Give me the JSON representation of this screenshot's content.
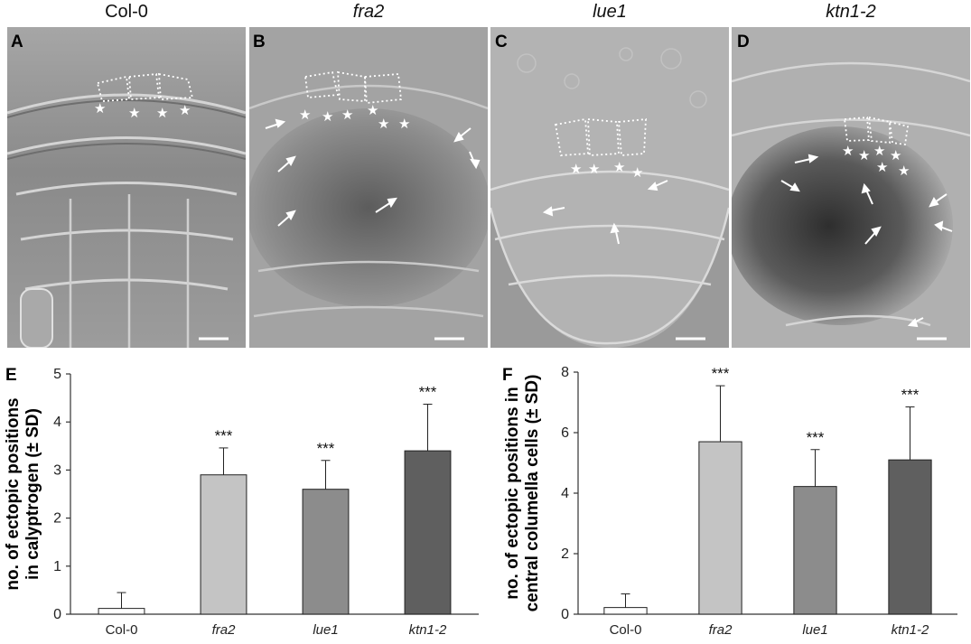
{
  "panels": {
    "titles": [
      "Col-0",
      "fra2",
      "lue1",
      "ktn1-2"
    ],
    "labels": [
      "A",
      "B",
      "C",
      "D"
    ]
  },
  "chart_data": [
    {
      "type": "bar",
      "panel_label": "E",
      "ylabel": "no. of ectopic positions in calyptrogen (± SD)",
      "ylabel_lines": [
        "no. of ectopic positions",
        "in calyptrogen (± SD)"
      ],
      "categories": [
        "Col-0",
        "fra2",
        "lue1",
        "ktn1-2"
      ],
      "italic_categories": [
        false,
        true,
        true,
        true
      ],
      "values": [
        0.12,
        2.9,
        2.6,
        3.4
      ],
      "errors": [
        0.33,
        0.56,
        0.6,
        0.97
      ],
      "significance": [
        "",
        "***",
        "***",
        "***"
      ],
      "bar_colors": [
        "#ffffff",
        "#c4c4c4",
        "#8c8c8c",
        "#5f5f5f"
      ],
      "ylim": [
        0,
        5
      ],
      "yticks": [
        0,
        1,
        2,
        3,
        4,
        5
      ],
      "grid": false
    },
    {
      "type": "bar",
      "panel_label": "F",
      "ylabel": "no. of ectopic positions in central columella cells (± SD)",
      "ylabel_lines": [
        "no. of ectopic positions in",
        "central columella cells (± SD)"
      ],
      "categories": [
        "Col-0",
        "fra2",
        "lue1",
        "ktn1-2"
      ],
      "italic_categories": [
        false,
        true,
        true,
        true
      ],
      "values": [
        0.22,
        5.7,
        4.22,
        5.1
      ],
      "errors": [
        0.45,
        1.85,
        1.22,
        1.75
      ],
      "significance": [
        "",
        "***",
        "***",
        "***"
      ],
      "bar_colors": [
        "#ffffff",
        "#c4c4c4",
        "#8c8c8c",
        "#5f5f5f"
      ],
      "ylim": [
        0,
        8
      ],
      "yticks": [
        0,
        2,
        4,
        6,
        8
      ],
      "grid": false
    }
  ]
}
